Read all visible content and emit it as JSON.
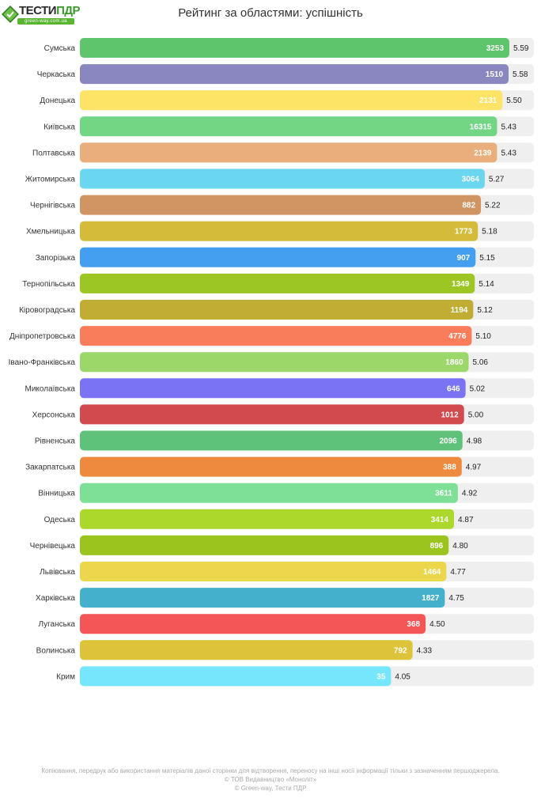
{
  "logo": {
    "brand_part1": "ТЕСТИ",
    "brand_part2": "ПДР",
    "domain": "green-way.com.ua"
  },
  "chart_data": {
    "type": "bar",
    "orientation": "horizontal",
    "title": "Рейтинг за областями: успішність",
    "xlim": [
      0,
      6
    ],
    "grid": false,
    "legend": "none",
    "categories": [
      "Сумська",
      "Черкаська",
      "Донецька",
      "Київська",
      "Полтавська",
      "Житомирська",
      "Чернігівська",
      "Хмельницька",
      "Запорізька",
      "Тернопільська",
      "Кіровоградська",
      "Дніпропетровська",
      "Івано-Франківська",
      "Миколаївська",
      "Херсонська",
      "Рівненська",
      "Закарпатська",
      "Вінницька",
      "Одеська",
      "Чернівецька",
      "Львівська",
      "Харківська",
      "Луганська",
      "Волинська",
      "Крим"
    ],
    "values": [
      5.59,
      5.58,
      5.5,
      5.43,
      5.43,
      5.27,
      5.22,
      5.18,
      5.15,
      5.14,
      5.12,
      5.1,
      5.06,
      5.02,
      5.0,
      4.98,
      4.97,
      4.92,
      4.87,
      4.8,
      4.77,
      4.75,
      4.5,
      4.33,
      4.05
    ],
    "value_labels": [
      "5.59",
      "5.58",
      "5.50",
      "5.43",
      "5.43",
      "5.27",
      "5.22",
      "5.18",
      "5.15",
      "5.14",
      "5.12",
      "5.10",
      "5.06",
      "5.02",
      "5.00",
      "4.98",
      "4.97",
      "4.92",
      "4.87",
      "4.80",
      "4.77",
      "4.75",
      "4.50",
      "4.33",
      "4.05"
    ],
    "counts": [
      "3253",
      "1510",
      "2131",
      "16315",
      "2139",
      "3064",
      "882",
      "1773",
      "907",
      "1349",
      "1194",
      "4776",
      "1860",
      "646",
      "1012",
      "2096",
      "388",
      "3611",
      "3414",
      "896",
      "1464",
      "1827",
      "368",
      "792",
      "35"
    ],
    "colors": [
      "#5ec56c",
      "#8a86c0",
      "#fde466",
      "#72d685",
      "#e9ae7b",
      "#6ad6ef",
      "#d09563",
      "#d4bc3a",
      "#449ff0",
      "#9bc624",
      "#c1ad33",
      "#f97d5b",
      "#9cd76a",
      "#7a74f5",
      "#d24a4e",
      "#5fc27a",
      "#ee8a3e",
      "#7de096",
      "#abd82a",
      "#9bc41e",
      "#ecd64b",
      "#44b0cc",
      "#f45557",
      "#dcc33a",
      "#76e6fd"
    ],
    "track_color": "#efefef"
  },
  "footer": {
    "line1": "Копіювання, передрук або використання матеріалів даної сторінки для відтворення, переносу на інші носії інформації тільки з зазначенням першоджерела.",
    "line2": "© ТОВ Видавництво «Моноліт»",
    "line3": "© Green-way, Тести ПДР"
  }
}
